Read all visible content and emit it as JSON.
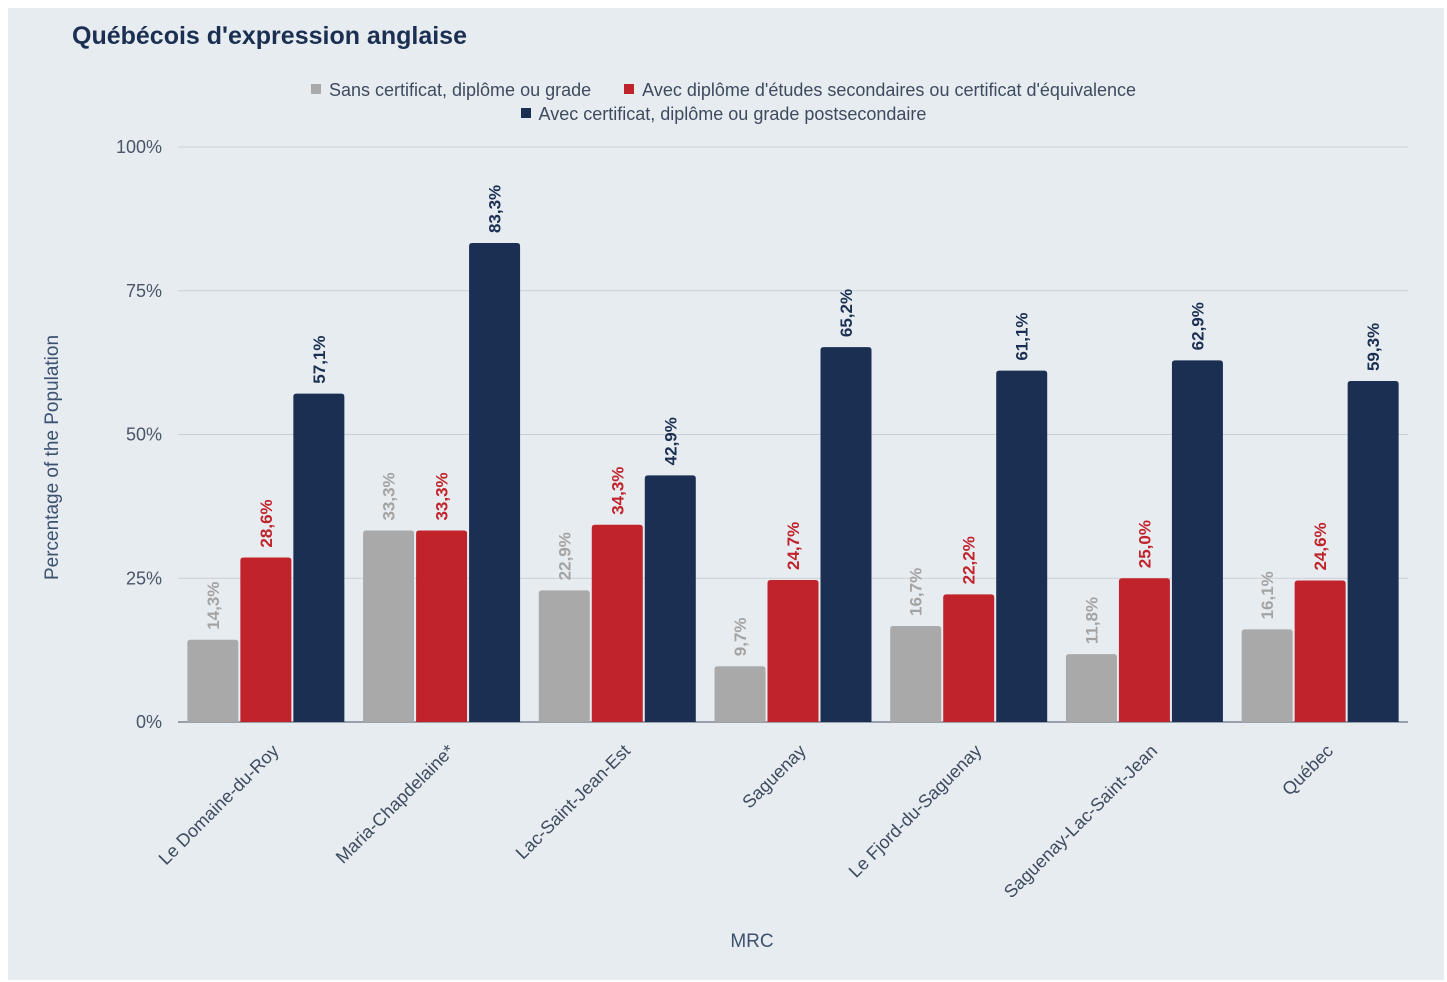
{
  "chart_data": {
    "type": "bar",
    "title": "Québécois d'expression anglaise",
    "xlabel": "MRC",
    "ylabel": "Percentage of the Population",
    "ylim": [
      0,
      100
    ],
    "yticks": [
      "0%",
      "25%",
      "50%",
      "75%",
      "100%"
    ],
    "ytick_values": [
      0,
      25,
      50,
      75,
      100
    ],
    "grid": true,
    "legend_position": "top-center",
    "categories": [
      "Le Domaine-du-Roy",
      "Maria-Chapdelaine*",
      "Lac-Saint-Jean-Est",
      "Saguenay",
      "Le Fjord-du-Saguenay",
      "Saguenay-Lac-Saint-Jean",
      "Québec"
    ],
    "series": [
      {
        "name": "Sans certificat, diplôme ou grade",
        "color": "#a9a9a9",
        "label_color": "#a3a3a3",
        "label_bold": false,
        "values": [
          14.3,
          33.3,
          22.9,
          9.7,
          16.7,
          11.8,
          16.1
        ],
        "labels": [
          "14,3%",
          "33,3%",
          "22,9%",
          "9,7%",
          "16,7%",
          "11,8%",
          "16,1%"
        ]
      },
      {
        "name": "Avec diplôme d'études secondaires ou certificat d'équivalence",
        "color": "#c1232b",
        "label_color": "#c1232b",
        "label_bold": true,
        "values": [
          28.6,
          33.3,
          34.3,
          24.7,
          22.2,
          25.0,
          24.6
        ],
        "labels": [
          "28,6%",
          "33,3%",
          "34,3%",
          "24,7%",
          "22,2%",
          "25,0%",
          "24,6%"
        ]
      },
      {
        "name": "Avec certificat, diplôme ou grade postsecondaire",
        "color": "#1b2f52",
        "label_color": "#1b2f52",
        "label_bold": true,
        "values": [
          57.1,
          83.3,
          42.9,
          65.2,
          61.1,
          62.9,
          59.3
        ],
        "labels": [
          "57,1%",
          "83,3%",
          "42,9%",
          "65,2%",
          "61,1%",
          "62,9%",
          "59,3%"
        ]
      }
    ]
  },
  "colors": {
    "background": "#e7ecf1",
    "gridline": "#c9cfd6",
    "title": "#1b2f52"
  }
}
